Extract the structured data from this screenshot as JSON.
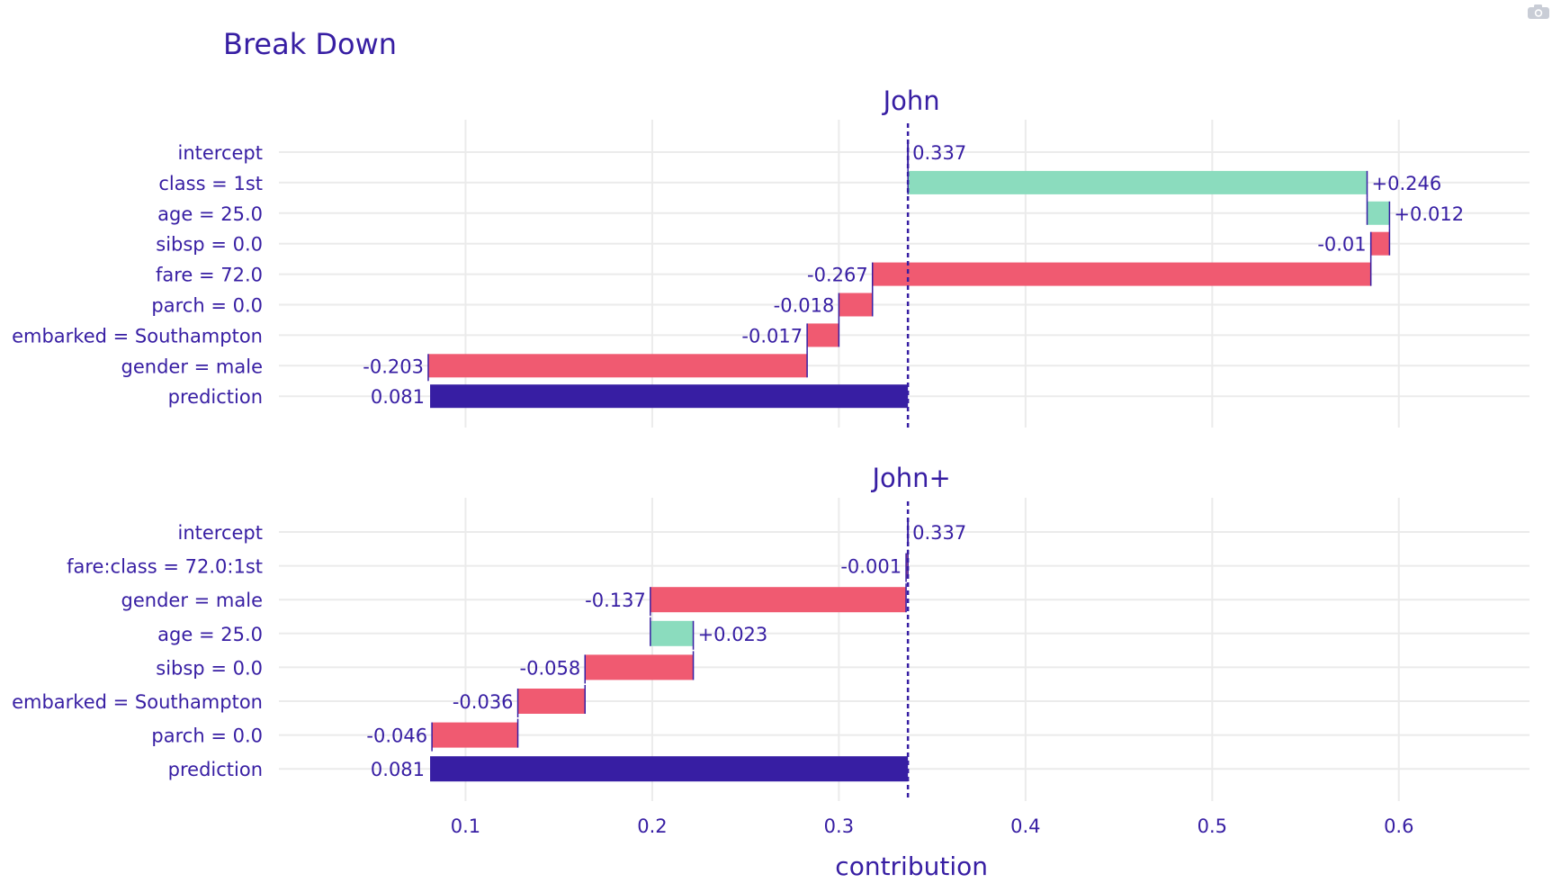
{
  "title": "Break Down",
  "toolbar": {
    "camera_icon": "camera-icon"
  },
  "colors": {
    "text": "#371ea3",
    "positive": "#8bdcbe",
    "negative": "#f05a71",
    "prediction": "#371ea3",
    "grid": "#ebebeb",
    "connector": "#371ea3"
  },
  "chart_data": [
    {
      "type": "waterfall",
      "title": "John",
      "xlabel": "contribution",
      "xlim": [
        0.0,
        0.67
      ],
      "xticks": [
        0.1,
        0.2,
        0.3,
        0.4,
        0.5,
        0.6
      ],
      "intercept": 0.337,
      "rows": [
        {
          "label": "intercept",
          "value": 0.337,
          "kind": "intercept",
          "text": "0.337"
        },
        {
          "label": "class = 1st",
          "value": 0.246,
          "kind": "positive",
          "text": "+0.246"
        },
        {
          "label": "age = 25.0",
          "value": 0.012,
          "kind": "positive",
          "text": "+0.012"
        },
        {
          "label": "sibsp = 0.0",
          "value": -0.01,
          "kind": "negative",
          "text": "-0.01"
        },
        {
          "label": "fare = 72.0",
          "value": -0.267,
          "kind": "negative",
          "text": "-0.267"
        },
        {
          "label": "parch = 0.0",
          "value": -0.018,
          "kind": "negative",
          "text": "-0.018"
        },
        {
          "label": "embarked = Southampton",
          "value": -0.017,
          "kind": "negative",
          "text": "-0.017"
        },
        {
          "label": "gender = male",
          "value": -0.203,
          "kind": "negative",
          "text": "-0.203"
        },
        {
          "label": "prediction",
          "value": 0.081,
          "kind": "prediction",
          "text": "0.081"
        }
      ]
    },
    {
      "type": "waterfall",
      "title": "John+",
      "xlabel": "contribution",
      "xlim": [
        0.0,
        0.67
      ],
      "xticks": [
        0.1,
        0.2,
        0.3,
        0.4,
        0.5,
        0.6
      ],
      "intercept": 0.337,
      "rows": [
        {
          "label": "intercept",
          "value": 0.337,
          "kind": "intercept",
          "text": "0.337"
        },
        {
          "label": "fare:class = 72.0:1st",
          "value": -0.001,
          "kind": "negative",
          "text": "-0.001"
        },
        {
          "label": "gender = male",
          "value": -0.137,
          "kind": "negative",
          "text": "-0.137"
        },
        {
          "label": "age = 25.0",
          "value": 0.023,
          "kind": "positive",
          "text": "+0.023"
        },
        {
          "label": "sibsp = 0.0",
          "value": -0.058,
          "kind": "negative",
          "text": "-0.058"
        },
        {
          "label": "embarked = Southampton",
          "value": -0.036,
          "kind": "negative",
          "text": "-0.036"
        },
        {
          "label": "parch = 0.0",
          "value": -0.046,
          "kind": "negative",
          "text": "-0.046"
        },
        {
          "label": "prediction",
          "value": 0.081,
          "kind": "prediction",
          "text": "0.081"
        }
      ]
    }
  ],
  "axis": {
    "tick_labels": [
      "0.1",
      "0.2",
      "0.3",
      "0.4",
      "0.5",
      "0.6"
    ],
    "xlabel": "contribution"
  }
}
